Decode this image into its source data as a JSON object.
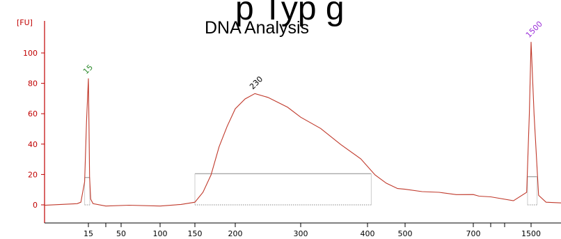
{
  "header": {
    "overflow_text": "p        Typ g"
  },
  "chart_data": {
    "type": "line",
    "title": "DNA Analysis",
    "ylabel": "[FU]",
    "xlabel": "",
    "ylim": [
      -10,
      110
    ],
    "y_ticks": [
      0,
      20,
      40,
      60,
      80,
      100
    ],
    "x_ticks": [
      "15",
      "50",
      "100",
      "150",
      "200",
      "300",
      "400",
      "500",
      "700",
      "1500"
    ],
    "grid": false,
    "colors": {
      "trace": "#c0392b",
      "axis": "#c00000",
      "peak_15": "#2e8b2e",
      "peak_230": "#000000",
      "peak_1500": "#9b30d9",
      "baseline": "#8a8a8a"
    },
    "peaks": [
      {
        "label": "15",
        "size_bp": 15,
        "value": 83
      },
      {
        "label": "230",
        "size_bp": 230,
        "value": 73
      },
      {
        "label": "1500",
        "size_bp": 1500,
        "value": 107
      }
    ],
    "series": [
      {
        "points": [
          [
            0,
            0
          ],
          [
            12,
            0.5
          ],
          [
            13,
            2
          ],
          [
            14,
            15
          ],
          [
            14.5,
            55
          ],
          [
            15,
            83
          ],
          [
            15.5,
            55
          ],
          [
            16,
            18
          ],
          [
            17,
            4
          ],
          [
            19,
            0.5
          ],
          [
            30,
            -0.5
          ],
          [
            60,
            -0.5
          ],
          [
            100,
            -0.5
          ],
          [
            130,
            0
          ],
          [
            150,
            2
          ],
          [
            160,
            8
          ],
          [
            170,
            20
          ],
          [
            180,
            38
          ],
          [
            190,
            52
          ],
          [
            200,
            63
          ],
          [
            215,
            70
          ],
          [
            230,
            73
          ],
          [
            250,
            71
          ],
          [
            280,
            64
          ],
          [
            300,
            58
          ],
          [
            330,
            50
          ],
          [
            360,
            40
          ],
          [
            390,
            30
          ],
          [
            420,
            20
          ],
          [
            450,
            14
          ],
          [
            480,
            11
          ],
          [
            500,
            10
          ],
          [
            550,
            9
          ],
          [
            600,
            8
          ],
          [
            650,
            7
          ],
          [
            700,
            6.5
          ],
          [
            800,
            6
          ],
          [
            1000,
            5
          ],
          [
            1300,
            3
          ],
          [
            1450,
            8
          ],
          [
            1480,
            60
          ],
          [
            1500,
            107
          ],
          [
            1520,
            60
          ],
          [
            1550,
            6
          ],
          [
            1600,
            2
          ],
          [
            1700,
            1
          ]
        ]
      }
    ],
    "marker_lines": [
      {
        "x_start": 14,
        "x_end": 16.2,
        "value": 18
      },
      {
        "x_start": 150,
        "x_end": 410,
        "value": 20.5
      },
      {
        "x_start": 1460,
        "x_end": 1540,
        "value": 18.5
      }
    ],
    "extra_axis_ticks": [
      "between 15 and 50",
      "between 700 and 1500"
    ]
  }
}
